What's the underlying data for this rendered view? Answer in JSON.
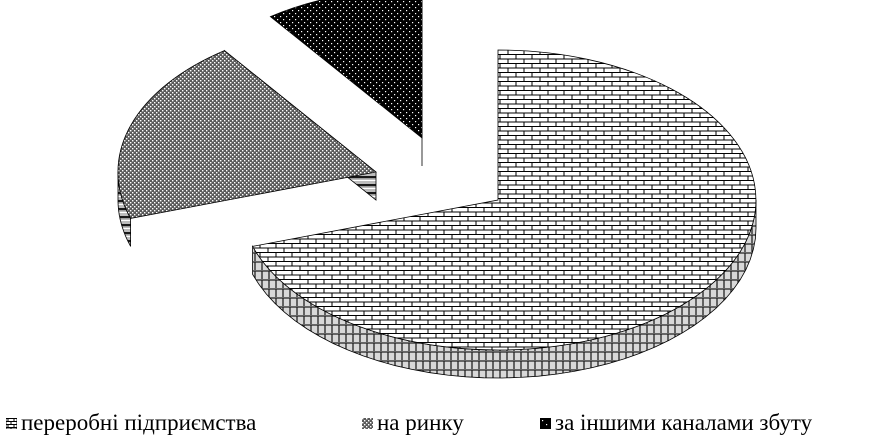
{
  "chart_data": {
    "type": "pie",
    "title": "",
    "style": "3d-exploded",
    "categories": [
      "переробні підприємства",
      "на ринку",
      "за іншими каналами збуту"
    ],
    "values": [
      70,
      20,
      10
    ],
    "legend": {
      "placement": "bottom"
    },
    "series_patterns": [
      "brick",
      "dotted",
      "black-dotted"
    ],
    "colors": {
      "brick": "#ffffff",
      "dotted": "#6e6e6e",
      "black": "#000000"
    }
  }
}
